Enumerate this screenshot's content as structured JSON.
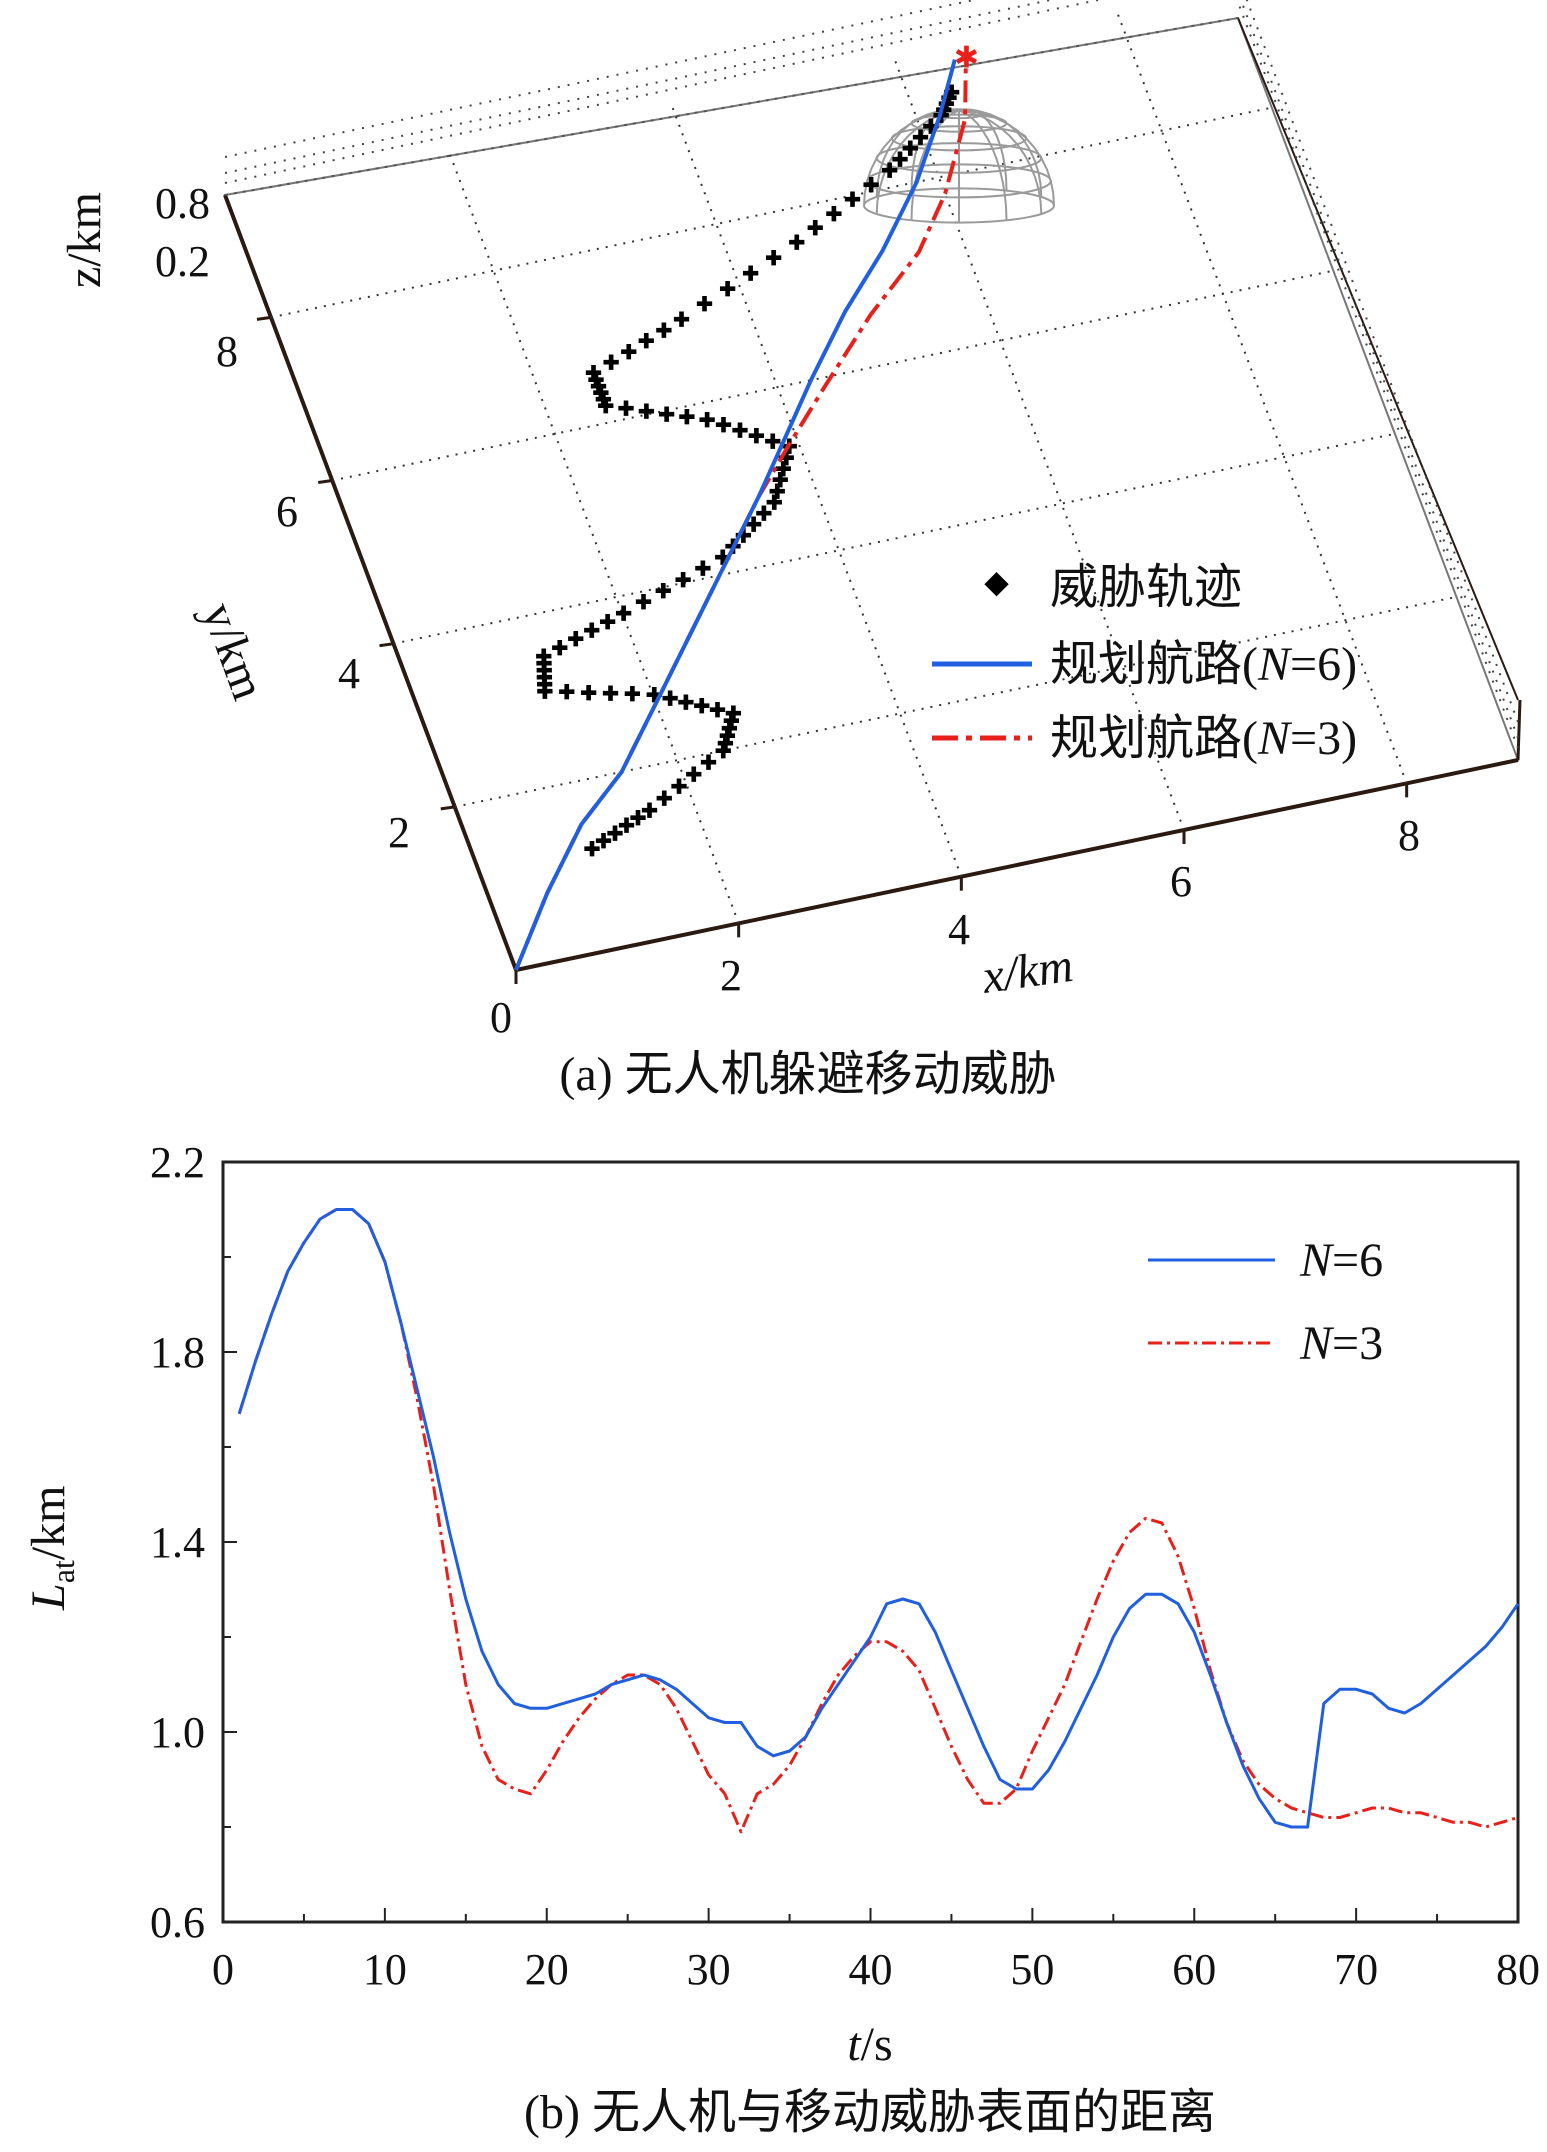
{
  "figure": {
    "caption_a": "(a) 无人机躲避移动威胁",
    "caption_b": "(b) 无人机与移动威胁表面的距离"
  },
  "chart_data": [
    {
      "type": "line3d",
      "title": "(a) 无人机躲避移动威胁",
      "xlabel": "x/km",
      "ylabel": "y/km",
      "zlabel": "z/km",
      "xlim": [
        0,
        9
      ],
      "ylim": [
        0,
        9.5
      ],
      "zlim": [
        0,
        1
      ],
      "x_ticks": [
        "0",
        "2",
        "4",
        "6",
        "8"
      ],
      "y_ticks": [
        "2",
        "4",
        "6",
        "8"
      ],
      "z_ticks": [
        "0.2",
        "0.8"
      ],
      "legend": [
        "威胁轨迹",
        "规划航路(N=6)",
        "规划航路(N=3)"
      ],
      "legend_parts": {
        "threat": "威胁轨迹",
        "route_prefix": "规划航路(",
        "n_var": "N",
        "n6_suffix": "=6)",
        "n3_suffix": "=3)"
      },
      "colors": {
        "threat": "#000000",
        "n6": "#1f5fe0",
        "n3": "#e8201a"
      },
      "series": [
        {
          "name": "威胁轨迹",
          "style": "dotted-plus",
          "x": [
            1.0,
            1.6,
            2.4,
            2.6,
            2.0,
            1.1,
            1.2,
            2.0,
            3.0,
            3.6,
            3.9,
            3.3,
            2.5,
            2.5,
            3.4,
            4.6,
            5.6,
            6.2,
            6.4
          ],
          "y": [
            1.2,
            1.5,
            2.0,
            2.4,
            2.8,
            3.1,
            3.5,
            3.8,
            4.2,
            4.7,
            5.3,
            5.8,
            6.2,
            6.6,
            7.0,
            7.6,
            8.2,
            8.7,
            9.0
          ]
        },
        {
          "name": "规划航路(N=6)",
          "style": "solid",
          "x": [
            0.0,
            0.5,
            1.0,
            1.5,
            2.0,
            2.5,
            3.0,
            3.5,
            3.9,
            4.3,
            4.8,
            5.3,
            5.8,
            6.2,
            6.5
          ],
          "y": [
            0.0,
            0.8,
            1.5,
            2.0,
            2.7,
            3.4,
            4.1,
            4.8,
            5.4,
            6.0,
            6.7,
            7.3,
            8.0,
            8.7,
            9.3
          ]
        },
        {
          "name": "规划航路(N=3)",
          "style": "dash-dot",
          "x": [
            0.0,
            0.5,
            1.0,
            1.5,
            2.0,
            2.5,
            3.0,
            3.5,
            3.9,
            4.4,
            5.0,
            5.6,
            6.0,
            6.4,
            6.6
          ],
          "y": [
            0.0,
            0.8,
            1.5,
            2.0,
            2.7,
            3.4,
            4.1,
            4.8,
            5.3,
            5.9,
            6.6,
            7.2,
            7.8,
            8.6,
            9.3
          ]
        }
      ],
      "threat_hemisphere": {
        "center_x": 6.6,
        "center_y": 9.2,
        "radius": 0.8
      }
    },
    {
      "type": "line",
      "title": "(b) 无人机与移动威胁表面的距离",
      "xlabel": "t/s",
      "xlabel_var": "t",
      "xlabel_unit": "/s",
      "ylabel": "Lat/km",
      "ylabel_var": "L",
      "ylabel_sub": "at",
      "ylabel_unit": "/km",
      "xlim": [
        0,
        80
      ],
      "ylim": [
        0.6,
        2.2
      ],
      "x_ticks": [
        "0",
        "10",
        "20",
        "30",
        "40",
        "50",
        "60",
        "70",
        "80"
      ],
      "y_ticks": [
        "0.6",
        "1.0",
        "1.4",
        "1.8",
        "2.2"
      ],
      "legend_position": "top-right",
      "legend_n6_var": "N",
      "legend_n6_suffix": "=6",
      "legend_n3_var": "N",
      "legend_n3_suffix": "=3",
      "series": [
        {
          "name": "N=6",
          "style": "solid",
          "color": "#1f5fe0",
          "x": [
            1,
            2,
            3,
            4,
            5,
            6,
            7,
            8,
            9,
            10,
            11,
            12,
            13,
            14,
            15,
            16,
            17,
            18,
            19,
            20,
            21,
            22,
            23,
            24,
            25,
            26,
            27,
            28,
            29,
            30,
            31,
            32,
            33,
            34,
            35,
            36,
            37,
            38,
            39,
            40,
            41,
            42,
            43,
            44,
            45,
            46,
            47,
            48,
            49,
            50,
            51,
            52,
            53,
            54,
            55,
            56,
            57,
            58,
            59,
            60,
            61,
            62,
            63,
            64,
            65,
            66,
            67,
            68,
            69,
            70,
            71,
            72,
            73,
            74,
            75,
            76,
            77,
            78,
            79,
            80
          ],
          "values": [
            1.67,
            1.78,
            1.88,
            1.97,
            2.03,
            2.08,
            2.1,
            2.1,
            2.07,
            1.99,
            1.86,
            1.72,
            1.58,
            1.42,
            1.28,
            1.17,
            1.1,
            1.06,
            1.05,
            1.05,
            1.06,
            1.07,
            1.08,
            1.1,
            1.11,
            1.12,
            1.11,
            1.09,
            1.06,
            1.03,
            1.02,
            1.02,
            0.97,
            0.95,
            0.96,
            0.99,
            1.05,
            1.1,
            1.15,
            1.2,
            1.27,
            1.28,
            1.27,
            1.21,
            1.13,
            1.05,
            0.97,
            0.9,
            0.88,
            0.88,
            0.92,
            0.98,
            1.05,
            1.12,
            1.2,
            1.26,
            1.29,
            1.29,
            1.27,
            1.21,
            1.12,
            1.02,
            0.93,
            0.86,
            0.81,
            0.8,
            0.8,
            1.06,
            1.09,
            1.09,
            1.08,
            1.05,
            1.04,
            1.06,
            1.09,
            1.12,
            1.15,
            1.18,
            1.22,
            1.27
          ]
        },
        {
          "name": "N=3",
          "style": "dash-dot",
          "color": "#e8201a",
          "x": [
            1,
            2,
            3,
            4,
            5,
            6,
            7,
            8,
            9,
            10,
            11,
            12,
            13,
            14,
            15,
            16,
            17,
            18,
            19,
            20,
            21,
            22,
            23,
            24,
            25,
            26,
            27,
            28,
            29,
            30,
            31,
            32,
            33,
            34,
            35,
            36,
            37,
            38,
            39,
            40,
            41,
            42,
            43,
            44,
            45,
            46,
            47,
            48,
            49,
            50,
            51,
            52,
            53,
            54,
            55,
            56,
            57,
            58,
            59,
            60,
            61,
            62,
            63,
            64,
            65,
            66,
            67,
            68,
            69,
            70,
            71,
            72,
            73,
            74,
            75,
            76,
            77,
            78,
            79,
            80
          ],
          "values": [
            1.67,
            1.78,
            1.88,
            1.97,
            2.03,
            2.08,
            2.1,
            2.1,
            2.07,
            1.99,
            1.86,
            1.7,
            1.52,
            1.3,
            1.1,
            0.97,
            0.9,
            0.88,
            0.87,
            0.92,
            0.98,
            1.03,
            1.07,
            1.1,
            1.12,
            1.12,
            1.1,
            1.05,
            0.98,
            0.91,
            0.87,
            0.79,
            0.87,
            0.89,
            0.93,
            0.99,
            1.06,
            1.12,
            1.16,
            1.19,
            1.19,
            1.17,
            1.13,
            1.05,
            0.97,
            0.9,
            0.85,
            0.85,
            0.88,
            0.96,
            1.03,
            1.1,
            1.19,
            1.28,
            1.36,
            1.42,
            1.45,
            1.44,
            1.37,
            1.26,
            1.13,
            1.02,
            0.94,
            0.89,
            0.86,
            0.84,
            0.83,
            0.82,
            0.82,
            0.83,
            0.84,
            0.84,
            0.83,
            0.83,
            0.82,
            0.81,
            0.81,
            0.8,
            0.81,
            0.82
          ]
        }
      ]
    }
  ]
}
